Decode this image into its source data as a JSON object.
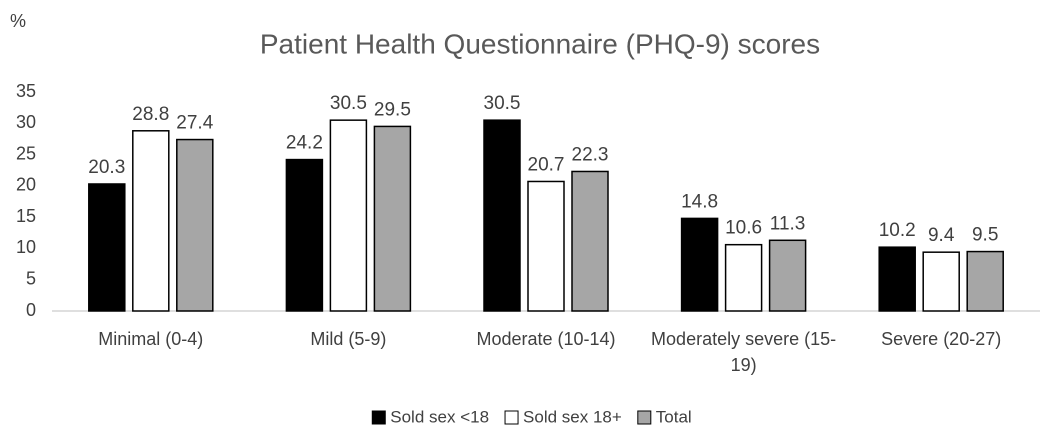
{
  "chart_data": {
    "type": "bar",
    "title": "Patient Health Questionnaire (PHQ-9) scores",
    "y_label": "%",
    "categories": [
      "Minimal (0-4)",
      "Mild (5-9)",
      "Moderate (10-14)",
      "Moderately severe (15-19)",
      "Severe (20-27)"
    ],
    "series": [
      {
        "name": "Sold sex <18",
        "color": "#000000",
        "values": [
          20.3,
          24.2,
          30.5,
          14.8,
          10.2
        ]
      },
      {
        "name": "Sold sex 18+",
        "color": "#ffffff",
        "values": [
          28.8,
          30.5,
          20.7,
          10.6,
          9.4
        ]
      },
      {
        "name": "Total",
        "color": "#a6a6a6",
        "values": [
          27.4,
          29.5,
          22.3,
          11.3,
          9.5
        ]
      }
    ],
    "ylim": [
      0,
      35
    ],
    "yticks": [
      0,
      5,
      10,
      15,
      20,
      25,
      30,
      35
    ],
    "grid": false,
    "legend": "bottom"
  }
}
